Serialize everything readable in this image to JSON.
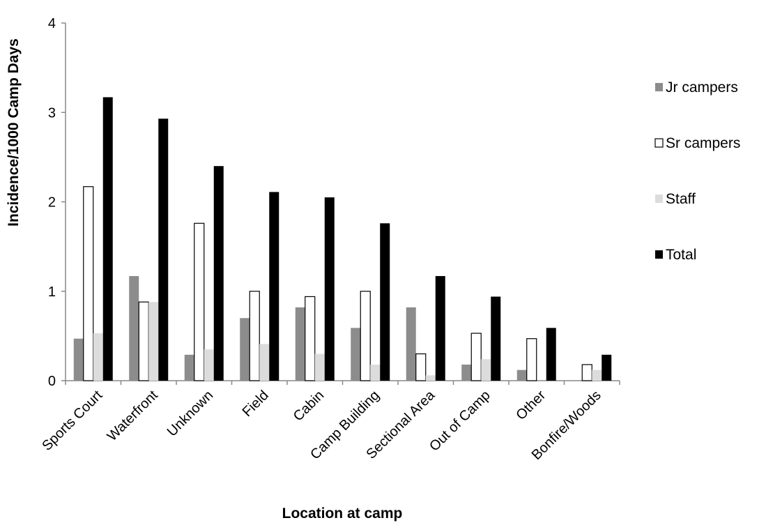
{
  "chart_data": {
    "type": "bar",
    "title": "",
    "xlabel": "Location at camp",
    "ylabel": "Incidence/1000 Camp Days",
    "ylim": [
      0,
      4
    ],
    "yticks": [
      "0",
      "1",
      "2",
      "3",
      "4"
    ],
    "grid": false,
    "legend_position": "right",
    "categories": [
      "Sports Court",
      "Waterfront",
      "Unknown",
      "Field",
      "Cabin",
      "Camp Building",
      "Sectional Area",
      "Out of Camp",
      "Other",
      "Bonfire/Woods"
    ],
    "series": [
      {
        "name": "Jr campers",
        "color": "#8c8c8c",
        "values": [
          0.47,
          1.17,
          0.29,
          0.7,
          0.82,
          0.59,
          0.82,
          0.18,
          0.12,
          0.0
        ]
      },
      {
        "name": "Sr campers",
        "color": "#ffffff",
        "values": [
          2.17,
          0.88,
          1.76,
          1.0,
          0.94,
          1.0,
          0.3,
          0.53,
          0.47,
          0.18
        ]
      },
      {
        "name": "Staff",
        "color": "#dcdcdc",
        "values": [
          0.53,
          0.88,
          0.35,
          0.41,
          0.3,
          0.18,
          0.06,
          0.24,
          0.0,
          0.12
        ]
      },
      {
        "name": "Total",
        "color": "#000000",
        "values": [
          3.17,
          2.93,
          2.4,
          2.11,
          2.05,
          1.76,
          1.17,
          0.94,
          0.59,
          0.29
        ]
      }
    ]
  }
}
